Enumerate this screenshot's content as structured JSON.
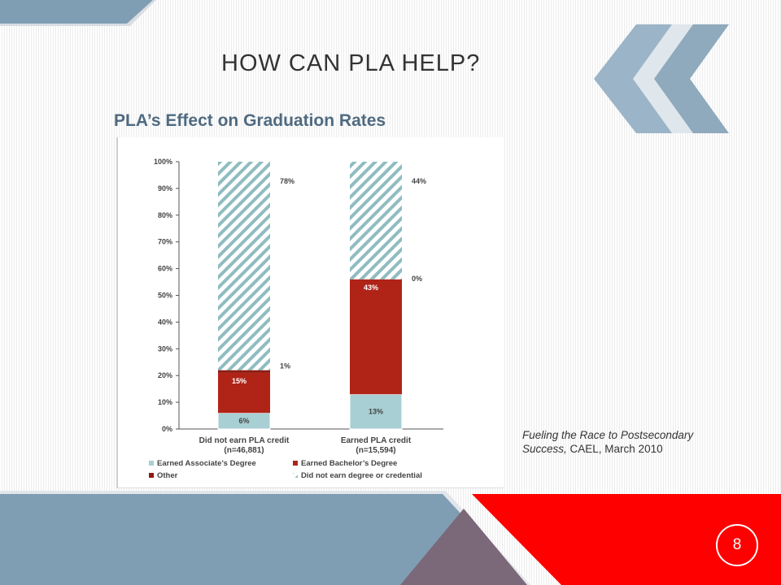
{
  "slide": {
    "title": "HOW CAN PLA HELP?",
    "page_number": "8",
    "citation_italic": "Fueling the Race to Postsecondary Success,",
    "citation_rest": " CAEL, March 2010"
  },
  "colors": {
    "associate": "#a8cfd3",
    "bachelor": "#b02418",
    "other": "#8e1b12",
    "no_degree_hatch": "#8fbcc0",
    "accent_red": "#ff0000",
    "steel_blue": "#7f9db3",
    "title_blue": "#4f6a80"
  },
  "chart_data": {
    "type": "bar",
    "stacked": true,
    "title": "PLA’s Effect on Graduation Rates",
    "categories": [
      "Did not earn PLA credit",
      "Earned PLA credit"
    ],
    "category_notes": [
      "(n=46,881)",
      "(n=15,594)"
    ],
    "series": [
      {
        "name": "Earned Associate’s Degree",
        "values": [
          6,
          13
        ],
        "labels": [
          "6%",
          "13%"
        ]
      },
      {
        "name": "Earned Bachelor’s Degree",
        "values": [
          15,
          43
        ],
        "labels": [
          "15%",
          "43%"
        ]
      },
      {
        "name": "Other",
        "values": [
          1,
          0
        ],
        "labels": [
          "1%",
          "0%"
        ]
      },
      {
        "name": "Did not earn degree or credential",
        "values": [
          78,
          44
        ],
        "labels": [
          "78%",
          "44%"
        ]
      }
    ],
    "y_ticks": [
      "0%",
      "10%",
      "20%",
      "30%",
      "40%",
      "50%",
      "60%",
      "70%",
      "80%",
      "90%",
      "100%"
    ],
    "ylim": [
      0,
      100
    ],
    "legend_position": "bottom",
    "grid": false
  }
}
